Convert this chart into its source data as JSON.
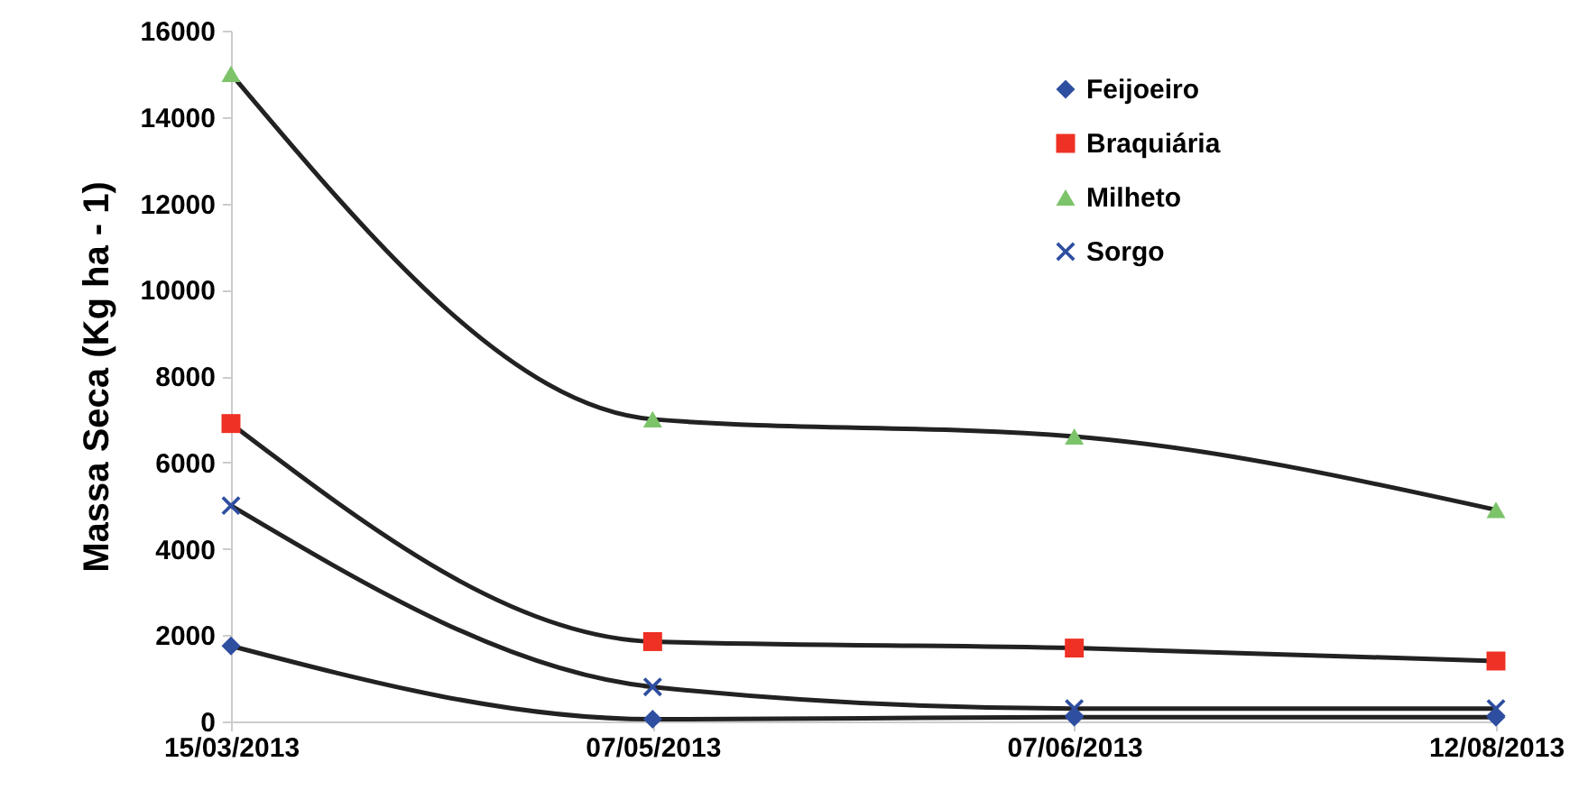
{
  "chart_data": {
    "type": "line",
    "ylabel": "Massa Seca (Kg ha - 1)",
    "categories": [
      "15/03/2013",
      "07/05/2013",
      "07/06/2013",
      "12/08/2013"
    ],
    "series": [
      {
        "name": "Feijoeiro",
        "color": "#2e4ea0",
        "marker": "diamond",
        "values": [
          1750,
          50,
          100,
          100
        ]
      },
      {
        "name": "Braquiária",
        "color": "#ee3124",
        "marker": "square",
        "values": [
          6900,
          1850,
          1700,
          1400
        ]
      },
      {
        "name": "Milheto",
        "color": "#7cc36a",
        "marker": "triangle",
        "values": [
          15000,
          7000,
          6600,
          4900
        ]
      },
      {
        "name": "Sorgo",
        "color": "#2e4ea0",
        "marker": "cross",
        "values": [
          5000,
          800,
          300,
          300
        ]
      }
    ],
    "ylim": [
      0,
      16000
    ],
    "yticks": [
      0,
      2000,
      4000,
      6000,
      8000,
      10000,
      12000,
      14000,
      16000
    ],
    "grid": false,
    "legend": "top right"
  }
}
